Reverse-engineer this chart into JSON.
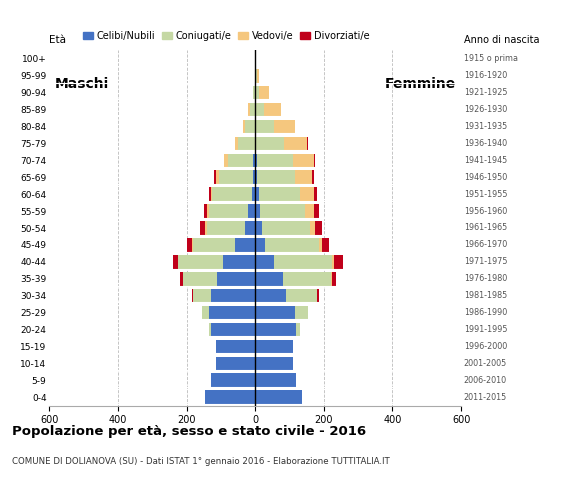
{
  "age_groups": [
    "0-4",
    "5-9",
    "10-14",
    "15-19",
    "20-24",
    "25-29",
    "30-34",
    "35-39",
    "40-44",
    "45-49",
    "50-54",
    "55-59",
    "60-64",
    "65-69",
    "70-74",
    "75-79",
    "80-84",
    "85-89",
    "90-94",
    "95-99",
    "100+"
  ],
  "birth_years": [
    "2011-2015",
    "2006-2010",
    "2001-2005",
    "1996-2000",
    "1991-1995",
    "1986-1990",
    "1981-1985",
    "1976-1980",
    "1971-1975",
    "1966-1970",
    "1961-1965",
    "1956-1960",
    "1951-1955",
    "1946-1950",
    "1941-1945",
    "1936-1940",
    "1931-1935",
    "1926-1930",
    "1921-1925",
    "1916-1920",
    "1915 o prima"
  ],
  "males": {
    "celibe": [
      145,
      130,
      115,
      115,
      130,
      135,
      130,
      110,
      95,
      60,
      30,
      20,
      10,
      5,
      5,
      0,
      0,
      0,
      0,
      0,
      0
    ],
    "coniugato": [
      0,
      0,
      0,
      0,
      5,
      20,
      50,
      100,
      130,
      120,
      110,
      115,
      115,
      100,
      75,
      50,
      30,
      15,
      5,
      0,
      0
    ],
    "vedovo": [
      0,
      0,
      0,
      0,
      0,
      0,
      0,
      0,
      0,
      5,
      5,
      5,
      5,
      10,
      10,
      10,
      5,
      5,
      0,
      0,
      0
    ],
    "divorziato": [
      0,
      0,
      0,
      0,
      0,
      0,
      5,
      10,
      15,
      15,
      15,
      10,
      5,
      5,
      0,
      0,
      0,
      0,
      0,
      0,
      0
    ]
  },
  "females": {
    "nubile": [
      135,
      120,
      110,
      110,
      120,
      115,
      90,
      80,
      55,
      30,
      20,
      15,
      10,
      5,
      5,
      0,
      0,
      0,
      0,
      0,
      0
    ],
    "coniugata": [
      0,
      0,
      0,
      0,
      10,
      40,
      90,
      140,
      170,
      155,
      140,
      130,
      120,
      110,
      105,
      85,
      55,
      25,
      10,
      5,
      0
    ],
    "vedova": [
      0,
      0,
      0,
      0,
      0,
      0,
      0,
      5,
      5,
      10,
      15,
      25,
      40,
      50,
      60,
      65,
      60,
      50,
      30,
      5,
      0
    ],
    "divorziata": [
      0,
      0,
      0,
      0,
      0,
      0,
      5,
      10,
      25,
      20,
      20,
      15,
      10,
      5,
      5,
      5,
      0,
      0,
      0,
      0,
      0
    ]
  },
  "colors": {
    "celibe": "#4472C4",
    "coniugato": "#C5D8A4",
    "vedovo": "#F5C77E",
    "divorziato": "#C0001A"
  },
  "legend_labels": [
    "Celibi/Nubili",
    "Coniugati/e",
    "Vedovi/e",
    "Divorziati/e"
  ],
  "title": "Popolazione per età, sesso e stato civile - 2016",
  "subtitle": "COMUNE DI DOLIANOVA (SU) - Dati ISTAT 1° gennaio 2016 - Elaborazione TUTTITALIA.IT",
  "label_eta": "Età",
  "label_anno": "Anno di nascita",
  "label_maschi": "Maschi",
  "label_femmine": "Femmine",
  "xlim": 600,
  "bg_color": "#ffffff",
  "grid_color": "#bbbbbb"
}
